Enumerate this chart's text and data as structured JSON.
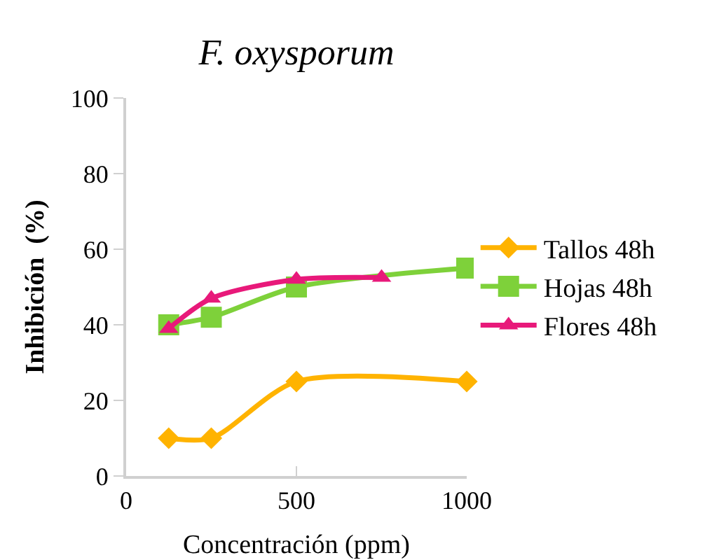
{
  "chart_data": {
    "type": "line",
    "title": "F. oxysporum",
    "xlabel": "Concentración (ppm)",
    "ylabel": "Inhibición  (%)",
    "xlim": [
      0,
      1000
    ],
    "xticks": [
      0,
      500,
      1000
    ],
    "ylim": [
      0,
      100
    ],
    "yticks": [
      0,
      20,
      40,
      60,
      80,
      100
    ],
    "grid": false,
    "legend": "right",
    "series": [
      {
        "name": "Tallos 48h",
        "color": "#ffb300",
        "marker": "diamond",
        "x": [
          125,
          250,
          500,
          1000
        ],
        "values": [
          10,
          10,
          25,
          25
        ]
      },
      {
        "name": "Hojas 48h",
        "color": "#7ed13a",
        "marker": "square",
        "x": [
          125,
          250,
          500,
          1000
        ],
        "values": [
          40,
          42,
          50,
          55
        ]
      },
      {
        "name": "Flores 48h",
        "color": "#e8197a",
        "marker": "triangle",
        "x": [
          125,
          250,
          500,
          750
        ],
        "values": [
          39,
          47,
          52,
          52.5
        ]
      }
    ]
  }
}
